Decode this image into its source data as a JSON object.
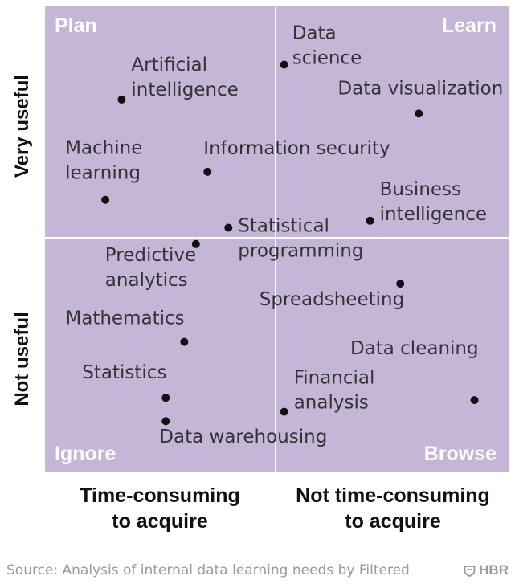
{
  "chart_data": {
    "type": "scatter",
    "quadrants": {
      "top_left": "Plan",
      "top_right": "Learn",
      "bottom_left": "Ignore",
      "bottom_right": "Browse"
    },
    "y_categories": [
      "Very useful",
      "Not useful"
    ],
    "x_categories": [
      "Time-consuming\nto acquire",
      "Not time-consuming\nto acquire"
    ],
    "xlim": [
      -1,
      1
    ],
    "ylim": [
      -1,
      1
    ],
    "grid": false,
    "colors": {
      "background": "#c5b6d8",
      "divider": "#ffffff",
      "point": "#111111"
    },
    "points": [
      {
        "label": "Data\nscience",
        "x": 0.03,
        "y": 0.75
      },
      {
        "label": "Artificial\nintelligence",
        "x": -0.67,
        "y": 0.6
      },
      {
        "label": "Data visualization",
        "x": 0.61,
        "y": 0.54
      },
      {
        "label": "Information security",
        "x": -0.3,
        "y": 0.29
      },
      {
        "label": "Machine\nlearning",
        "x": -0.74,
        "y": 0.17
      },
      {
        "label": "Business\nintelligence",
        "x": 0.4,
        "y": 0.08
      },
      {
        "label": "Statistical\nprogramming",
        "x": -0.21,
        "y": 0.05
      },
      {
        "label": "Predictive\nanalytics",
        "x": -0.35,
        "y": -0.02
      },
      {
        "label": "Spreadsheeting",
        "x": 0.53,
        "y": -0.19
      },
      {
        "label": "Mathematics",
        "x": -0.4,
        "y": -0.44
      },
      {
        "label": "Statistics",
        "x": -0.48,
        "y": -0.68
      },
      {
        "label": "Data cleaning",
        "x": 0.85,
        "y": -0.69
      },
      {
        "label": "Financial\nanalysis",
        "x": 0.03,
        "y": -0.74
      },
      {
        "label": "Data warehousing",
        "x": -0.48,
        "y": -0.78
      }
    ]
  },
  "footer": {
    "source": "Source: Analysis of internal data learning needs by Filtered",
    "brand": "HBR",
    "brand_icon": "hbr-shield-icon"
  }
}
